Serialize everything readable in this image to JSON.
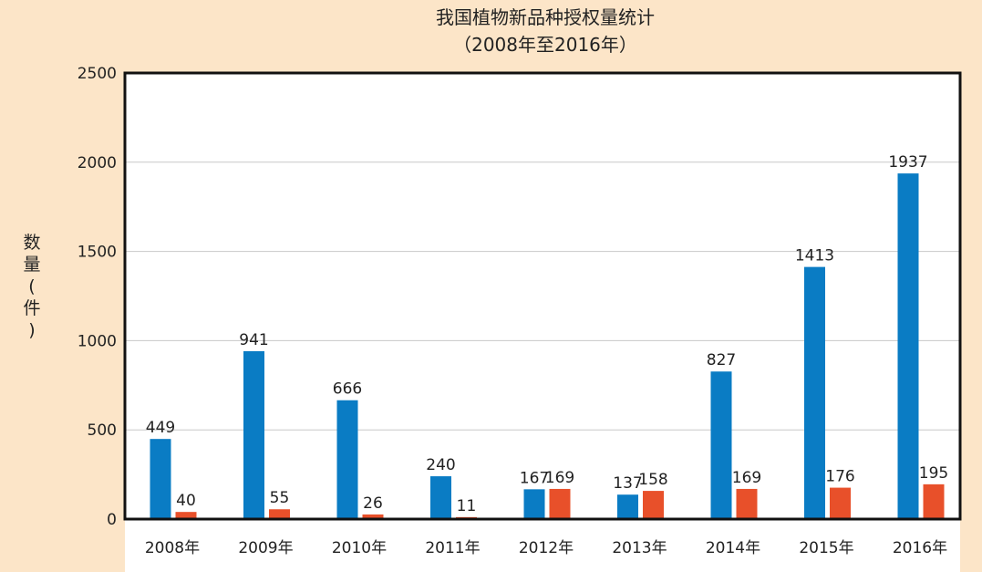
{
  "chart_data": {
    "type": "bar",
    "title": "我国植物新品种授权量统计",
    "subtitle": "（2008年至2016年）",
    "xlabel": "",
    "ylabel": "数量(件)",
    "ylim": [
      0,
      2500
    ],
    "yticks": [
      0,
      500,
      1000,
      1500,
      2000,
      2500
    ],
    "grid": true,
    "categories": [
      "2008年",
      "2009年",
      "2010年",
      "2011年",
      "2012年",
      "2013年",
      "2014年",
      "2015年",
      "2016年"
    ],
    "series": [
      {
        "values": [
          449,
          941,
          666,
          240,
          167,
          137,
          827,
          1413,
          1937
        ],
        "color": "#0a7cc4"
      },
      {
        "values": [
          40,
          55,
          26,
          11,
          169,
          158,
          169,
          176,
          195
        ],
        "color": "#e8502a"
      }
    ]
  }
}
